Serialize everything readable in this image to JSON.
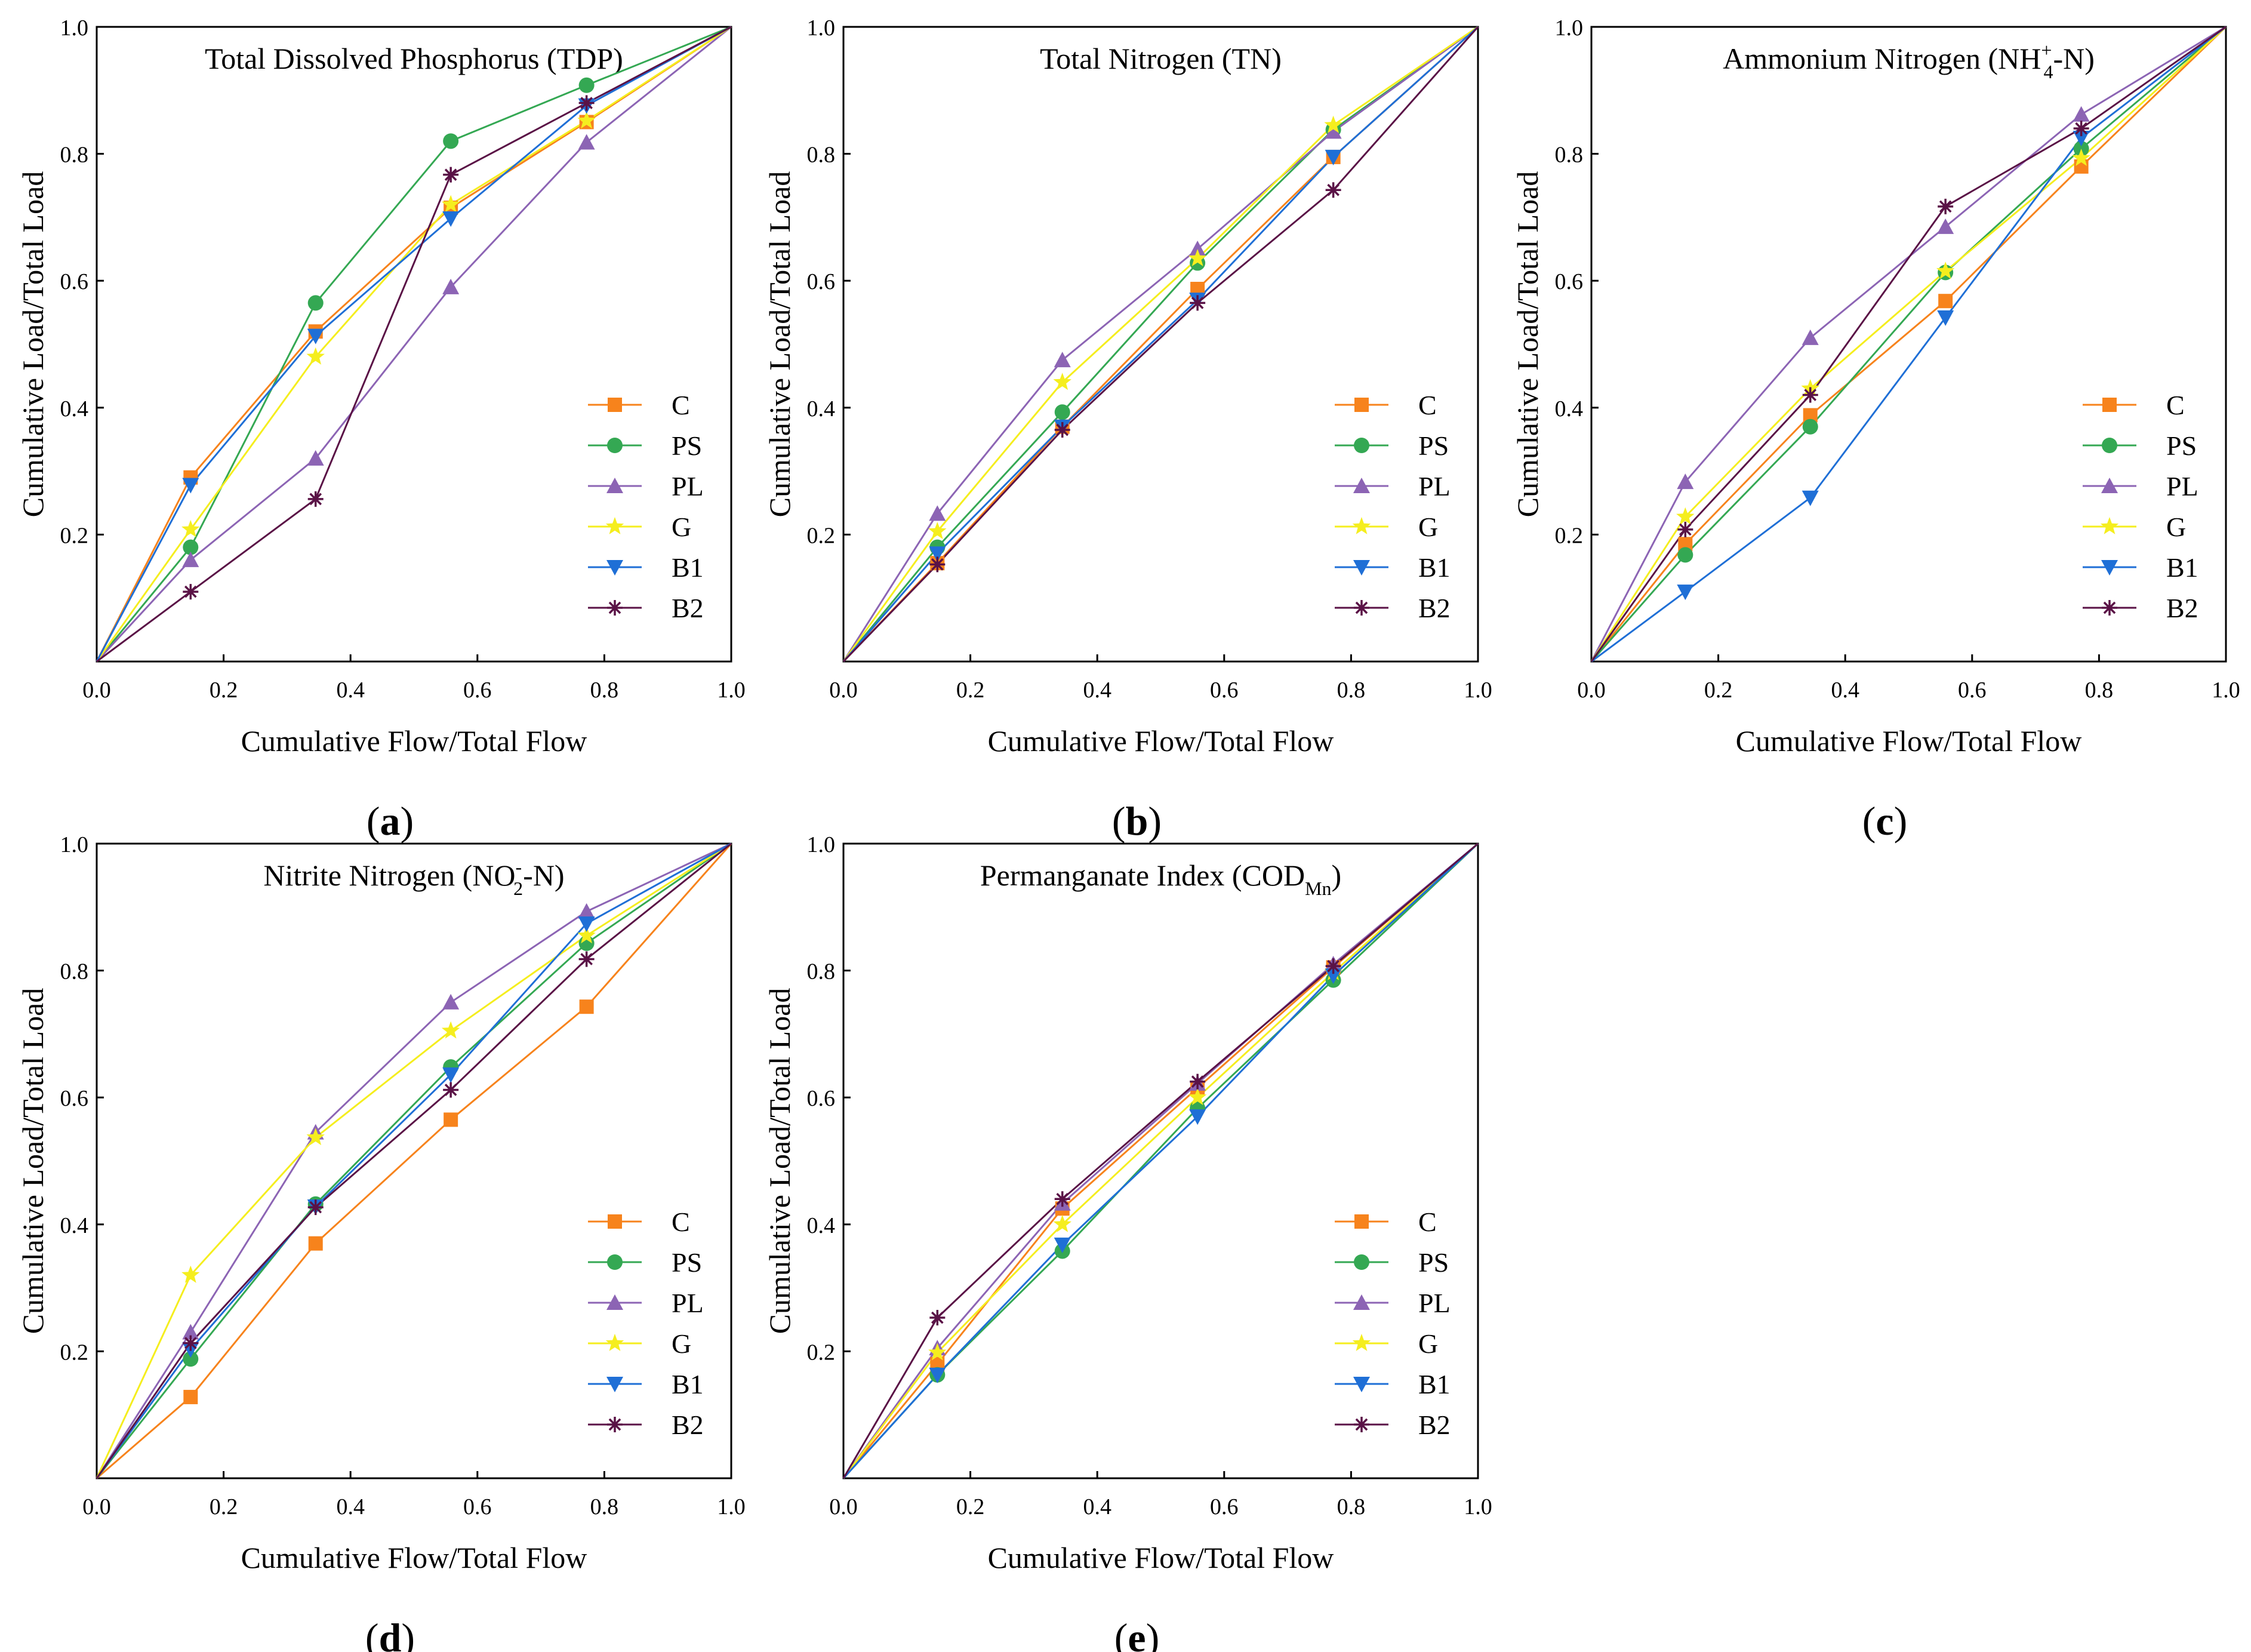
{
  "chart_data": [
    {
      "type": "line",
      "panel_label": "(a)",
      "title_parts": [
        "Total Dissolved Phosphorus (TDP)"
      ],
      "xlabel": "Cumulative Flow/Total Flow",
      "ylabel": "Cumulative Load/Total Load",
      "xlim": [
        0,
        1
      ],
      "ylim": [
        0,
        1
      ],
      "x_ticks": [
        "0.0",
        "0.2",
        "0.4",
        "0.6",
        "0.8",
        "1.0"
      ],
      "y_ticks": [
        "0.2",
        "0.4",
        "0.6",
        "0.8",
        "1.0"
      ],
      "legend_position": "bottom-right",
      "x": [
        0,
        0.148,
        0.345,
        0.558,
        0.772,
        1.0
      ],
      "series": [
        {
          "name": "C",
          "values": [
            0,
            0.29,
            0.52,
            0.715,
            0.85,
            1.0
          ]
        },
        {
          "name": "PS",
          "values": [
            0,
            0.18,
            0.565,
            0.82,
            0.908,
            1.0
          ]
        },
        {
          "name": "PL",
          "values": [
            0,
            0.16,
            0.32,
            0.59,
            0.818,
            1.0
          ]
        },
        {
          "name": "G",
          "values": [
            0,
            0.208,
            0.48,
            0.72,
            0.852,
            1.0
          ]
        },
        {
          "name": "B1",
          "values": [
            0,
            0.278,
            0.513,
            0.698,
            0.876,
            1.0
          ]
        },
        {
          "name": "B2",
          "values": [
            0,
            0.11,
            0.256,
            0.767,
            0.88,
            1.0
          ]
        }
      ]
    },
    {
      "type": "line",
      "panel_label": "(b)",
      "title_parts": [
        "Total Nitrogen (TN)"
      ],
      "xlabel": "Cumulative Flow/Total Flow",
      "ylabel": "Cumulative Load/Total Load",
      "xlim": [
        0,
        1
      ],
      "ylim": [
        0,
        1
      ],
      "x_ticks": [
        "0.0",
        "0.2",
        "0.4",
        "0.6",
        "0.8",
        "1.0"
      ],
      "y_ticks": [
        "0.2",
        "0.4",
        "0.6",
        "0.8",
        "1.0"
      ],
      "legend_position": "bottom-right",
      "x": [
        0,
        0.148,
        0.345,
        0.558,
        0.772,
        1.0
      ],
      "series": [
        {
          "name": "C",
          "values": [
            0,
            0.155,
            0.37,
            0.587,
            0.795,
            1.0
          ]
        },
        {
          "name": "PS",
          "values": [
            0,
            0.18,
            0.393,
            0.628,
            0.838,
            1.0
          ]
        },
        {
          "name": "PL",
          "values": [
            0,
            0.233,
            0.475,
            0.65,
            0.835,
            1.0
          ]
        },
        {
          "name": "G",
          "values": [
            0,
            0.205,
            0.44,
            0.635,
            0.845,
            1.0
          ]
        },
        {
          "name": "B1",
          "values": [
            0,
            0.17,
            0.37,
            0.57,
            0.795,
            1.0
          ]
        },
        {
          "name": "B2",
          "values": [
            0,
            0.153,
            0.365,
            0.565,
            0.743,
            1.0
          ]
        }
      ]
    },
    {
      "type": "line",
      "panel_label": "(c)",
      "title_parts": [
        "Ammonium Nitrogen (NH",
        "4",
        "+",
        "-N)"
      ],
      "xlabel": "Cumulative Flow/Total Flow",
      "ylabel": "Cumulative Load/Total Load",
      "xlim": [
        0,
        1
      ],
      "ylim": [
        0,
        1
      ],
      "x_ticks": [
        "0.0",
        "0.2",
        "0.4",
        "0.6",
        "0.8",
        "1.0"
      ],
      "y_ticks": [
        "0.2",
        "0.4",
        "0.6",
        "0.8",
        "1.0"
      ],
      "legend_position": "bottom-right",
      "x": [
        0,
        0.148,
        0.345,
        0.558,
        0.772,
        1.0
      ],
      "series": [
        {
          "name": "C",
          "values": [
            0,
            0.185,
            0.388,
            0.568,
            0.78,
            1.0
          ]
        },
        {
          "name": "PS",
          "values": [
            0,
            0.168,
            0.37,
            0.613,
            0.808,
            1.0
          ]
        },
        {
          "name": "PL",
          "values": [
            0,
            0.283,
            0.51,
            0.685,
            0.862,
            1.0
          ]
        },
        {
          "name": "G",
          "values": [
            0,
            0.228,
            0.43,
            0.615,
            0.793,
            1.0
          ]
        },
        {
          "name": "B1",
          "values": [
            0,
            0.11,
            0.258,
            0.542,
            0.825,
            1.0
          ]
        },
        {
          "name": "B2",
          "values": [
            0,
            0.208,
            0.42,
            0.717,
            0.84,
            1.0
          ]
        }
      ]
    },
    {
      "type": "line",
      "panel_label": "(d)",
      "title_parts": [
        "Nitrite Nitrogen (NO",
        "2",
        "-",
        "-N)"
      ],
      "xlabel": "Cumulative Flow/Total Flow",
      "ylabel": "Cumulative Load/Total Load",
      "xlim": [
        0,
        1
      ],
      "ylim": [
        0,
        1
      ],
      "x_ticks": [
        "0.0",
        "0.2",
        "0.4",
        "0.6",
        "0.8",
        "1.0"
      ],
      "y_ticks": [
        "0.2",
        "0.4",
        "0.6",
        "0.8",
        "1.0"
      ],
      "legend_position": "bottom-right",
      "x": [
        0,
        0.148,
        0.345,
        0.558,
        0.772,
        1.0
      ],
      "series": [
        {
          "name": "C",
          "values": [
            0,
            0.128,
            0.37,
            0.565,
            0.743,
            1.0
          ]
        },
        {
          "name": "PS",
          "values": [
            0,
            0.188,
            0.432,
            0.648,
            0.843,
            1.0
          ]
        },
        {
          "name": "PL",
          "values": [
            0,
            0.23,
            0.545,
            0.75,
            0.893,
            1.0
          ]
        },
        {
          "name": "G",
          "values": [
            0,
            0.32,
            0.537,
            0.705,
            0.855,
            1.0
          ]
        },
        {
          "name": "B1",
          "values": [
            0,
            0.203,
            0.428,
            0.636,
            0.874,
            1.0
          ]
        },
        {
          "name": "B2",
          "values": [
            0,
            0.213,
            0.427,
            0.612,
            0.818,
            1.0
          ]
        }
      ]
    },
    {
      "type": "line",
      "panel_label": "(e)",
      "title_parts": [
        "Permanganate Index (COD",
        "Mn",
        "",
        ")"
      ],
      "xlabel": "Cumulative Flow/Total Flow",
      "ylabel": "Cumulative Load/Total Load",
      "xlim": [
        0,
        1
      ],
      "ylim": [
        0,
        1
      ],
      "x_ticks": [
        "0.0",
        "0.2",
        "0.4",
        "0.6",
        "0.8",
        "1.0"
      ],
      "y_ticks": [
        "0.2",
        "0.4",
        "0.6",
        "0.8",
        "1.0"
      ],
      "legend_position": "bottom-right",
      "x": [
        0,
        0.148,
        0.345,
        0.558,
        0.772,
        1.0
      ],
      "series": [
        {
          "name": "C",
          "values": [
            0,
            0.18,
            0.425,
            0.615,
            0.805,
            1.0
          ]
        },
        {
          "name": "PS",
          "values": [
            0,
            0.163,
            0.358,
            0.583,
            0.785,
            1.0
          ]
        },
        {
          "name": "PL",
          "values": [
            0,
            0.205,
            0.433,
            0.622,
            0.81,
            1.0
          ]
        },
        {
          "name": "G",
          "values": [
            0,
            0.198,
            0.4,
            0.6,
            0.797,
            1.0
          ]
        },
        {
          "name": "B1",
          "values": [
            0,
            0.163,
            0.368,
            0.57,
            0.792,
            1.0
          ]
        },
        {
          "name": "B2",
          "values": [
            0,
            0.253,
            0.44,
            0.625,
            0.807,
            1.0
          ]
        }
      ]
    }
  ],
  "series_styles": [
    {
      "name": "C",
      "color": "#f7831c",
      "marker": "square"
    },
    {
      "name": "PS",
      "color": "#34a853",
      "marker": "circle"
    },
    {
      "name": "PL",
      "color": "#8c64b4",
      "marker": "triangle-up"
    },
    {
      "name": "G",
      "color": "#f5ee1e",
      "marker": "star"
    },
    {
      "name": "B1",
      "color": "#1f6fd6",
      "marker": "triangle-down"
    },
    {
      "name": "B2",
      "color": "#5a1246",
      "marker": "asterisk"
    }
  ]
}
